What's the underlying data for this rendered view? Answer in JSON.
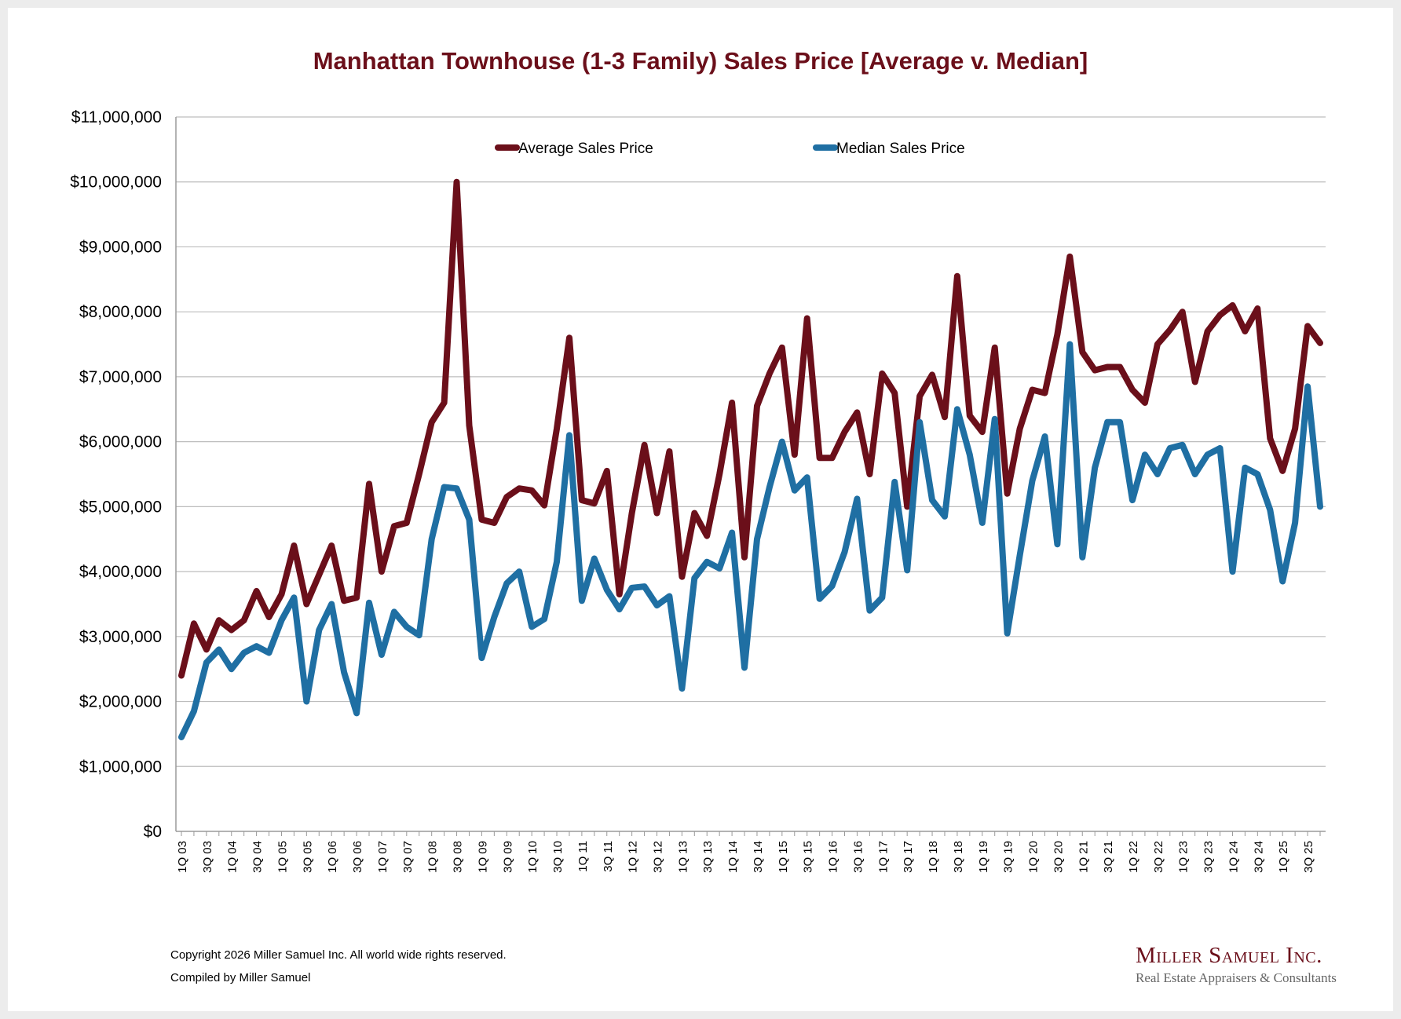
{
  "chart_data": {
    "type": "line",
    "title": "Manhattan Townhouse (1-3 Family) Sales Price [Average v. Median]",
    "xlabel": "",
    "ylabel": "",
    "ylim": [
      0,
      11000000
    ],
    "yticks": [
      0,
      1000000,
      2000000,
      3000000,
      4000000,
      5000000,
      6000000,
      7000000,
      8000000,
      9000000,
      10000000,
      11000000
    ],
    "ytick_labels": [
      "$0",
      "$1,000,000",
      "$2,000,000",
      "$3,000,000",
      "$4,000,000",
      "$5,000,000",
      "$6,000,000",
      "$7,000,000",
      "$8,000,000",
      "$9,000,000",
      "$10,000,000",
      "$11,000,000"
    ],
    "grid": true,
    "legend_position": "top-center",
    "x_start_year": 3,
    "x_end_year": 25,
    "x_label_every": 2,
    "series": [
      {
        "name": "Average Sales Price",
        "color": "#6b0f1a",
        "values": [
          2400000,
          3200000,
          2800000,
          3250000,
          3100000,
          3250000,
          3700000,
          3300000,
          3650000,
          4400000,
          3500000,
          3950000,
          4400000,
          3550000,
          3600000,
          5350000,
          4000000,
          4700000,
          4750000,
          5500000,
          6300000,
          6600000,
          10000000,
          6250000,
          4800000,
          4750000,
          5150000,
          5280000,
          5250000,
          5020000,
          6200000,
          7600000,
          5100000,
          5050000,
          5550000,
          3650000,
          4900000,
          5950000,
          4900000,
          5850000,
          3920000,
          4900000,
          4550000,
          5500000,
          6600000,
          4220000,
          6550000,
          7050000,
          7450000,
          5800000,
          7900000,
          5750000,
          5750000,
          6150000,
          6450000,
          5500000,
          7050000,
          6750000,
          5000000,
          6700000,
          7030000,
          6380000,
          8550000,
          6400000,
          6150000,
          7450000,
          5200000,
          6200000,
          6800000,
          6750000,
          7650000,
          8850000,
          7380000,
          7100000,
          7150000,
          7150000,
          6800000,
          6600000,
          7500000,
          7720000,
          8000000,
          6920000,
          7700000,
          7950000,
          8100000,
          7700000,
          8050000,
          6050000,
          5550000,
          6200000,
          7780000,
          7520000
        ]
      },
      {
        "name": "Median Sales Price",
        "color": "#1f6fa3",
        "values": [
          1450000,
          1850000,
          2600000,
          2800000,
          2500000,
          2750000,
          2850000,
          2750000,
          3250000,
          3600000,
          2000000,
          3100000,
          3500000,
          2450000,
          1820000,
          3520000,
          2720000,
          3380000,
          3150000,
          3020000,
          4500000,
          5300000,
          5280000,
          4800000,
          2670000,
          3300000,
          3820000,
          4000000,
          3150000,
          3270000,
          4150000,
          6100000,
          3550000,
          4200000,
          3720000,
          3420000,
          3750000,
          3770000,
          3480000,
          3620000,
          2200000,
          3900000,
          4150000,
          4050000,
          4600000,
          2520000,
          4500000,
          5300000,
          6000000,
          5250000,
          5450000,
          3580000,
          3780000,
          4300000,
          5120000,
          3400000,
          3600000,
          5380000,
          4020000,
          6300000,
          5100000,
          4850000,
          6500000,
          5800000,
          4750000,
          6350000,
          3050000,
          4250000,
          5400000,
          6080000,
          4420000,
          7500000,
          4220000,
          5600000,
          6300000,
          6300000,
          5100000,
          5800000,
          5500000,
          5900000,
          5950000,
          5500000,
          5800000,
          5900000,
          4000000,
          5600000,
          5500000,
          4950000,
          3850000,
          4750000,
          6850000,
          5000000
        ]
      }
    ]
  },
  "footer": {
    "copyright": "Copyright 2026 Miller Samuel Inc.  All world wide rights reserved.",
    "compiled": "Compiled by Miller Samuel"
  },
  "logo": {
    "name": "Miller Samuel Inc.",
    "tagline": "Real Estate Appraisers & Consultants"
  }
}
